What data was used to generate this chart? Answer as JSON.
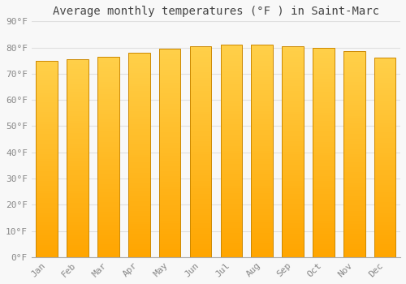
{
  "title": "Average monthly temperatures (°F ) in Saint-Marc",
  "months": [
    "Jan",
    "Feb",
    "Mar",
    "Apr",
    "May",
    "Jun",
    "Jul",
    "Aug",
    "Sep",
    "Oct",
    "Nov",
    "Dec"
  ],
  "values": [
    75,
    75.5,
    76.5,
    78,
    79.5,
    80.5,
    81,
    81,
    80.5,
    80,
    78.5,
    76
  ],
  "ylim": [
    0,
    90
  ],
  "yticks": [
    0,
    10,
    20,
    30,
    40,
    50,
    60,
    70,
    80,
    90
  ],
  "ytick_labels": [
    "0°F",
    "10°F",
    "20°F",
    "30°F",
    "40°F",
    "50°F",
    "60°F",
    "70°F",
    "80°F",
    "90°F"
  ],
  "bar_color_top": "#FFD04A",
  "bar_color_bottom": "#FFA500",
  "bar_edge_color": "#CC8800",
  "background_color": "#F8F8F8",
  "grid_color": "#E0E0E0",
  "font_family": "monospace",
  "title_fontsize": 10,
  "tick_fontsize": 8,
  "tick_label_color": "#888888",
  "title_color": "#444444",
  "bar_width": 0.7,
  "gradient_steps": 80
}
